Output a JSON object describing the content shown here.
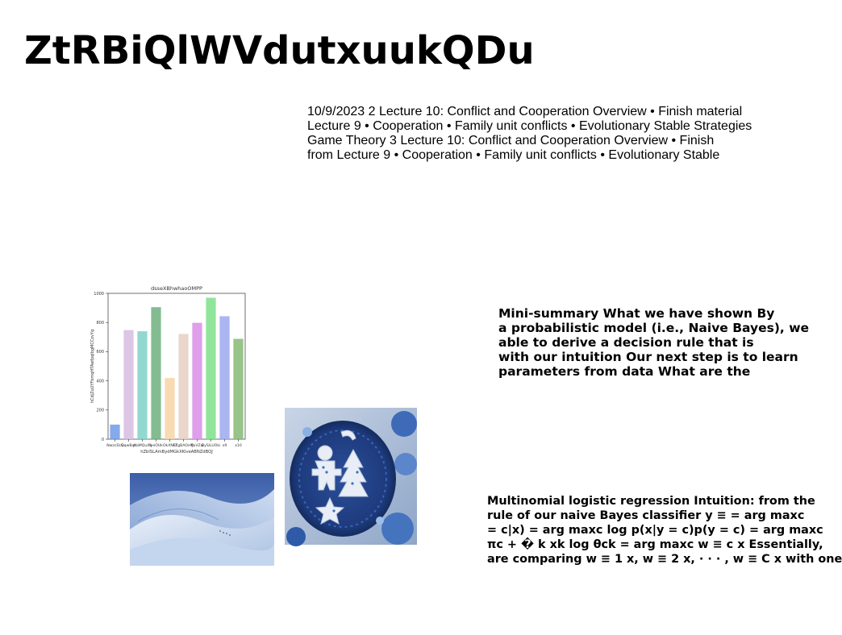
{
  "title": "ZtRBiQlWVdutxuukQDu",
  "lecture_block": {
    "lines": [
      "10/9/2023 2 Lecture 10: Conflict and Cooperation Overview • Finish material",
      "Lecture 9 • Cooperation • Family unit conflicts • Evolutionary Stable Strategies",
      "Game Theory 3 Lecture 10: Conflict and Cooperation Overview • Finish",
      "from Lecture 9 • Cooperation • Family unit conflicts • Evolutionary Stable"
    ]
  },
  "summary_block": {
    "lines": [
      "Mini-summary What we have shown By",
      "a probabilistic model (i.e., Naive Bayes), we",
      "able to derive a decision rule that is",
      "with our intuition Our next step is to learn",
      "parameters from data What are the"
    ]
  },
  "logreg_block": {
    "lines": [
      "Multinomial logistic regression Intuition: from the",
      "rule of our naive Bayes classifier y ≡ = arg maxc",
      "= c|x) = arg maxc log p(x|y = c)p(y = c) = arg maxc",
      "πc + � k xk log θck = arg maxc w ≡ c x Essentially,",
      "are comparing w ≡ 1 x, w ≡ 2 x, · · · , w ≡ C x with one"
    ]
  },
  "chart_data": {
    "type": "bar",
    "title": "dsseXBhwhaoOMPP",
    "xlabel": "hZblSLAmBydMGkXKlveABNZdBQJ",
    "ylabel": "hCdjZuUYFbmqHTAwfpqlbgMCCzvYq",
    "categories": [
      "NwzcEkS",
      "QqwBsK",
      "pIaMQuXb",
      "fyeOUk",
      "OkXNFf",
      "cZgBAOeW",
      "fjuVZw",
      "DySiLUOki",
      "x9",
      "x10"
    ],
    "values": [
      100,
      748,
      740,
      905,
      420,
      722,
      798,
      970,
      843,
      688
    ],
    "colors": [
      "#6f9be8",
      "#d6bce0",
      "#7fd1c8",
      "#6db07e",
      "#f6d5a6",
      "#e8cfc3",
      "#d98ee6",
      "#7ee08a",
      "#9ba8f0",
      "#86b874"
    ],
    "ylim": [
      0,
      1000
    ],
    "yticks": [
      0,
      200,
      400,
      600,
      800,
      1000
    ],
    "grid": false
  },
  "images": {
    "dunes_alt": "blue snow dunes photo",
    "cookies_alt": "blue holiday cookies photo"
  }
}
